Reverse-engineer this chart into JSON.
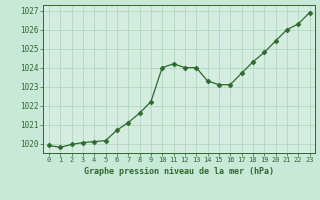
{
  "x": [
    0,
    1,
    2,
    3,
    4,
    5,
    6,
    7,
    8,
    9,
    10,
    11,
    12,
    13,
    14,
    15,
    16,
    17,
    18,
    19,
    20,
    21,
    22,
    23
  ],
  "y": [
    1019.9,
    1019.8,
    1019.95,
    1020.05,
    1020.1,
    1020.15,
    1020.7,
    1021.1,
    1021.6,
    1022.2,
    1024.0,
    1024.2,
    1024.0,
    1024.0,
    1023.3,
    1023.1,
    1023.1,
    1023.7,
    1024.3,
    1024.8,
    1025.4,
    1026.0,
    1026.3,
    1026.9
  ],
  "line_color": "#2d6a2d",
  "marker": "D",
  "marker_size": 2.5,
  "bg_color": "#c8e8d8",
  "plot_bg_color": "#d4ede0",
  "grid_color": "#b0d8c0",
  "xlabel": "Graphe pression niveau de la mer (hPa)",
  "xlabel_color": "#2d6a2d",
  "tick_color": "#2d6a2d",
  "ylim": [
    1019.5,
    1027.3
  ],
  "xlim": [
    -0.5,
    23.5
  ],
  "yticks": [
    1020,
    1021,
    1022,
    1023,
    1024,
    1025,
    1026,
    1027
  ],
  "xticks": [
    0,
    1,
    2,
    3,
    4,
    5,
    6,
    7,
    8,
    9,
    10,
    11,
    12,
    13,
    14,
    15,
    16,
    17,
    18,
    19,
    20,
    21,
    22,
    23
  ],
  "xtick_labels": [
    "0",
    "1",
    "2",
    "3",
    "4",
    "5",
    "6",
    "7",
    "8",
    "9",
    "10",
    "11",
    "12",
    "13",
    "14",
    "15",
    "16",
    "17",
    "18",
    "19",
    "20",
    "21",
    "22",
    "23"
  ]
}
